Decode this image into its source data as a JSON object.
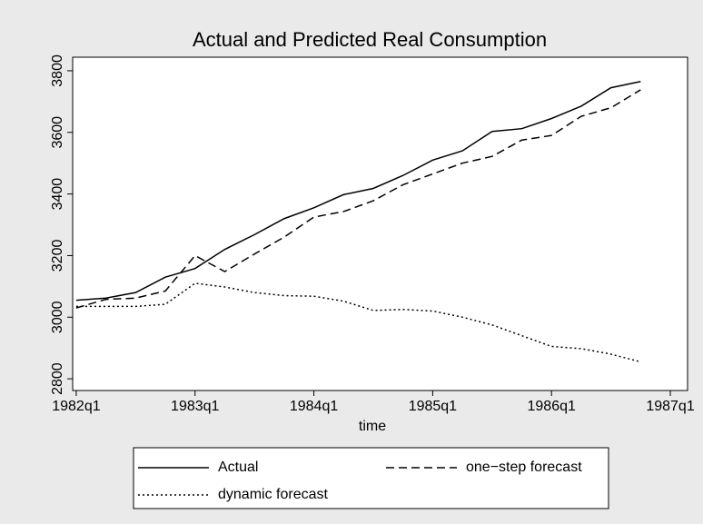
{
  "chart_data": {
    "type": "line",
    "title": "Actual and Predicted Real Consumption",
    "x_label": "time",
    "x": [
      0,
      1,
      2,
      3,
      4,
      5,
      6,
      7,
      8,
      9,
      10,
      11,
      12,
      13,
      14,
      15,
      16,
      17,
      18,
      19
    ],
    "series": [
      {
        "name": "Actual",
        "color": "#000000",
        "dash": "solid",
        "values": [
          3055,
          3062,
          3080,
          3130,
          3158,
          3220,
          3268,
          3320,
          3355,
          3398,
          3418,
          3460,
          3510,
          3540,
          3603,
          3612,
          3645,
          3685,
          3745,
          3765
        ]
      },
      {
        "name": "one−step forecast",
        "color": "#000000",
        "dash": "dashed",
        "values": [
          3030,
          3058,
          3062,
          3085,
          3200,
          3148,
          3205,
          3260,
          3325,
          3343,
          3378,
          3430,
          3465,
          3500,
          3522,
          3575,
          3590,
          3652,
          3680,
          3738
        ]
      },
      {
        "name": "dynamic forecast",
        "color": "#000000",
        "dash": "dotted",
        "values": [
          3035,
          3035,
          3035,
          3042,
          3110,
          3098,
          3080,
          3070,
          3068,
          3052,
          3022,
          3025,
          3020,
          3000,
          2975,
          2940,
          2905,
          2898,
          2880,
          2855
        ]
      }
    ],
    "xlim": [
      -0.12,
      20.58
    ],
    "xticks": [
      {
        "value": 0,
        "label": "1982q1"
      },
      {
        "value": 4,
        "label": "1983q1"
      },
      {
        "value": 8,
        "label": "1984q1"
      },
      {
        "value": 12,
        "label": "1985q1"
      },
      {
        "value": 16,
        "label": "1986q1"
      },
      {
        "value": 20,
        "label": "1987q1"
      }
    ],
    "ylim": [
      2762,
      3844
    ],
    "yticks": [
      2800,
      3000,
      3200,
      3400,
      3600,
      3800
    ],
    "grid": false,
    "legend": "bottom"
  }
}
